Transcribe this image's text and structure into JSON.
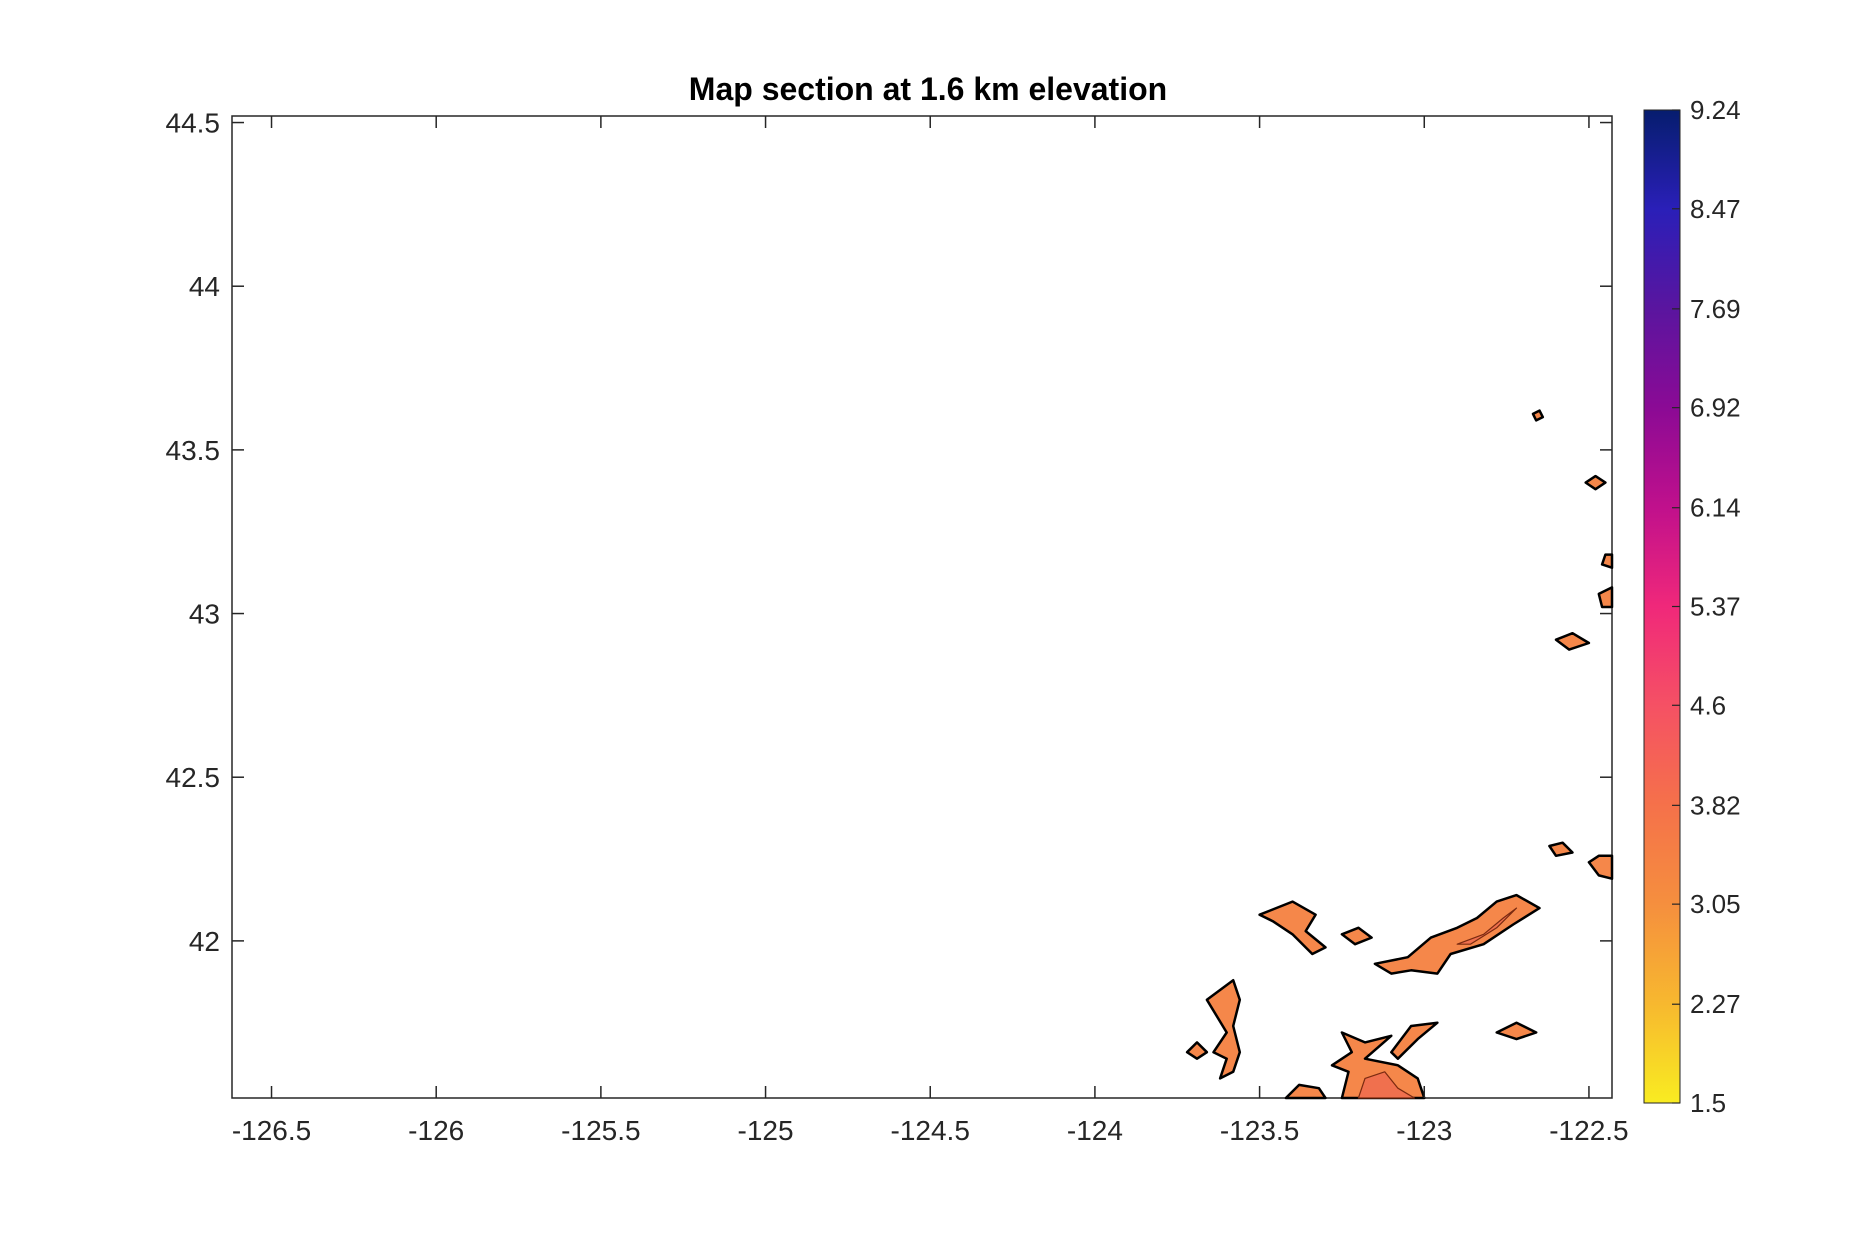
{
  "chart_data": {
    "type": "heatmap",
    "title": "Map section at 1.6 km elevation",
    "xlabel": "",
    "ylabel": "",
    "xlim": [
      -126.62,
      -122.43
    ],
    "ylim": [
      41.52,
      44.52
    ],
    "x_ticks": [
      "-126.5",
      "-126",
      "-125.5",
      "-125",
      "-124.5",
      "-124",
      "-123.5",
      "-123",
      "-122.5"
    ],
    "y_ticks": [
      "44.5",
      "44",
      "43.5",
      "43",
      "42.5",
      "42"
    ],
    "colorbar": {
      "range": [
        1.5,
        9.24
      ],
      "ticks": [
        "1.5",
        "2.27",
        "3.05",
        "3.82",
        "4.6",
        "5.37",
        "6.14",
        "6.92",
        "7.69",
        "8.47",
        "9.24"
      ],
      "colors": [
        "#f9ec21",
        "#f7b82f",
        "#f58f3e",
        "#f5714a",
        "#f55164",
        "#f0287a",
        "#c0108c",
        "#8b0a95",
        "#5a159f",
        "#2a1fb8",
        "#061d6e"
      ]
    },
    "fill_color": "#f5874a",
    "contour_color": "#000000",
    "regions": [
      {
        "value": 3.6,
        "polygon": [
          [
            -123.25,
            41.52
          ],
          [
            -123.23,
            41.6
          ],
          [
            -123.28,
            41.62
          ],
          [
            -123.22,
            41.66
          ],
          [
            -123.25,
            41.72
          ],
          [
            -123.18,
            41.69
          ],
          [
            -123.1,
            41.71
          ],
          [
            -123.18,
            41.64
          ],
          [
            -123.08,
            41.62
          ],
          [
            -123.02,
            41.58
          ],
          [
            -123.0,
            41.52
          ]
        ]
      },
      {
        "value": 3.6,
        "polygon": [
          [
            -123.42,
            41.52
          ],
          [
            -123.38,
            41.56
          ],
          [
            -123.32,
            41.55
          ],
          [
            -123.3,
            41.52
          ]
        ]
      },
      {
        "value": 3.6,
        "polygon": [
          [
            -123.1,
            41.66
          ],
          [
            -123.04,
            41.74
          ],
          [
            -122.96,
            41.75
          ],
          [
            -123.02,
            41.7
          ],
          [
            -123.08,
            41.64
          ]
        ]
      },
      {
        "value": 3.6,
        "polygon": [
          [
            -123.15,
            41.93
          ],
          [
            -123.05,
            41.95
          ],
          [
            -122.98,
            42.01
          ],
          [
            -122.9,
            42.04
          ],
          [
            -122.84,
            42.07
          ],
          [
            -122.78,
            42.12
          ],
          [
            -122.72,
            42.14
          ],
          [
            -122.65,
            42.1
          ],
          [
            -122.73,
            42.05
          ],
          [
            -122.82,
            41.99
          ],
          [
            -122.92,
            41.96
          ],
          [
            -122.96,
            41.9
          ],
          [
            -123.04,
            41.91
          ],
          [
            -123.1,
            41.9
          ]
        ]
      },
      {
        "value": 3.6,
        "polygon": [
          [
            -123.62,
            41.58
          ],
          [
            -123.6,
            41.64
          ],
          [
            -123.64,
            41.66
          ],
          [
            -123.6,
            41.72
          ],
          [
            -123.66,
            41.82
          ],
          [
            -123.58,
            41.88
          ],
          [
            -123.56,
            41.82
          ],
          [
            -123.58,
            41.74
          ],
          [
            -123.56,
            41.66
          ],
          [
            -123.58,
            41.6
          ]
        ]
      },
      {
        "value": 3.6,
        "polygon": [
          [
            -123.5,
            42.08
          ],
          [
            -123.4,
            42.12
          ],
          [
            -123.33,
            42.08
          ],
          [
            -123.36,
            42.03
          ],
          [
            -123.3,
            41.98
          ],
          [
            -123.34,
            41.96
          ],
          [
            -123.4,
            42.02
          ],
          [
            -123.46,
            42.06
          ]
        ]
      },
      {
        "value": 3.6,
        "polygon": [
          [
            -123.25,
            42.02
          ],
          [
            -123.2,
            42.04
          ],
          [
            -123.16,
            42.01
          ],
          [
            -123.21,
            41.99
          ]
        ]
      },
      {
        "value": 3.6,
        "polygon": [
          [
            -122.78,
            41.72
          ],
          [
            -122.72,
            41.75
          ],
          [
            -122.66,
            41.72
          ],
          [
            -122.72,
            41.7
          ]
        ]
      },
      {
        "value": 3.6,
        "polygon": [
          [
            -122.47,
            42.26
          ],
          [
            -122.43,
            42.26
          ],
          [
            -122.43,
            42.19
          ],
          [
            -122.47,
            42.2
          ],
          [
            -122.5,
            42.24
          ]
        ]
      },
      {
        "value": 3.6,
        "polygon": [
          [
            -122.6,
            42.92
          ],
          [
            -122.55,
            42.94
          ],
          [
            -122.5,
            42.91
          ],
          [
            -122.56,
            42.89
          ]
        ]
      },
      {
        "value": 3.6,
        "polygon": [
          [
            -122.46,
            43.02
          ],
          [
            -122.43,
            43.02
          ],
          [
            -122.43,
            43.08
          ],
          [
            -122.47,
            43.06
          ]
        ]
      },
      {
        "value": 3.6,
        "polygon": [
          [
            -122.45,
            43.18
          ],
          [
            -122.43,
            43.18
          ],
          [
            -122.43,
            43.14
          ],
          [
            -122.46,
            43.15
          ]
        ]
      },
      {
        "value": 3.6,
        "polygon": [
          [
            -122.48,
            43.42
          ],
          [
            -122.45,
            43.4
          ],
          [
            -122.48,
            43.38
          ],
          [
            -122.51,
            43.4
          ]
        ]
      },
      {
        "value": 3.6,
        "polygon": [
          [
            -122.67,
            43.61
          ],
          [
            -122.65,
            43.62
          ],
          [
            -122.64,
            43.6
          ],
          [
            -122.66,
            43.59
          ]
        ]
      },
      {
        "value": 3.6,
        "polygon": [
          [
            -123.72,
            41.66
          ],
          [
            -123.69,
            41.69
          ],
          [
            -123.66,
            41.66
          ],
          [
            -123.69,
            41.64
          ]
        ]
      },
      {
        "value": 3.6,
        "polygon": [
          [
            -122.62,
            42.29
          ],
          [
            -122.58,
            42.3
          ],
          [
            -122.55,
            42.27
          ],
          [
            -122.6,
            42.26
          ]
        ]
      }
    ],
    "inner_regions": [
      {
        "value": 4.0,
        "polygon": [
          [
            -123.2,
            41.52
          ],
          [
            -123.18,
            41.58
          ],
          [
            -123.12,
            41.6
          ],
          [
            -123.08,
            41.55
          ],
          [
            -123.03,
            41.52
          ]
        ]
      },
      {
        "value": 4.0,
        "polygon": [
          [
            -122.9,
            41.99
          ],
          [
            -122.82,
            42.02
          ],
          [
            -122.76,
            42.07
          ],
          [
            -122.72,
            42.1
          ],
          [
            -122.78,
            42.04
          ],
          [
            -122.86,
            41.99
          ]
        ]
      }
    ]
  }
}
